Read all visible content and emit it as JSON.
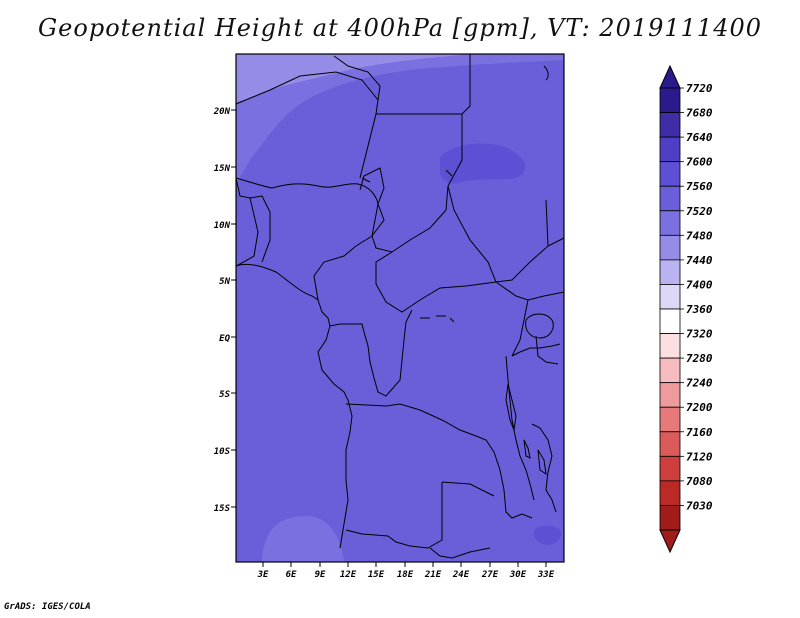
{
  "title": "Geopotential Height at 400hPa [gpm], VT: 2019111400",
  "credit": "GrADS: IGES/COLA",
  "map": {
    "lat_labels": [
      "20N",
      "15N",
      "10N",
      "5N",
      "EQ",
      "5S",
      "10S",
      "15S"
    ],
    "lon_labels": [
      "3E",
      "6E",
      "9E",
      "12E",
      "15E",
      "18E",
      "21E",
      "24E",
      "27E",
      "30E",
      "33E"
    ],
    "field_base_color": "#6b5fd9"
  },
  "colorbar": {
    "labels": [
      "7720",
      "7680",
      "7640",
      "7600",
      "7560",
      "7520",
      "7480",
      "7440",
      "7400",
      "7360",
      "7320",
      "7280",
      "7240",
      "7200",
      "7160",
      "7120",
      "7080",
      "7030"
    ],
    "colors": [
      "#2a1b8c",
      "#3f2da8",
      "#4f3fc4",
      "#5e50d4",
      "#6b5fd9",
      "#7a70e0",
      "#958ce8",
      "#b9b3f1",
      "#dcd9f8",
      "#ffffff",
      "#fbdfe1",
      "#f6bcc0",
      "#ef9b9d",
      "#e67a7b",
      "#db5b5a",
      "#cd3f3c",
      "#bb2a27",
      "#a01c1a"
    ],
    "top_arrow_color": "#2a1b8c",
    "bottom_arrow_color": "#a01c1a"
  }
}
